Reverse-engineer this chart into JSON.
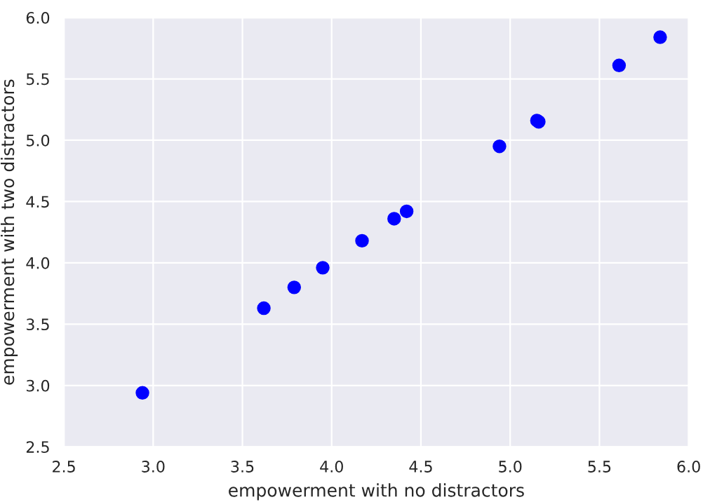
{
  "chart_data": {
    "type": "scatter",
    "xlabel": "empowerment with no distractors",
    "ylabel": "empowerment with two distractors",
    "x": [
      2.94,
      3.62,
      3.79,
      3.95,
      4.17,
      4.35,
      4.42,
      4.94,
      5.15,
      5.16,
      5.61,
      5.84
    ],
    "series": [
      {
        "color": "#0000ff",
        "values": [
          2.94,
          3.63,
          3.8,
          3.96,
          4.18,
          4.36,
          4.42,
          4.95,
          5.16,
          5.15,
          5.61,
          5.84
        ]
      }
    ],
    "xlim": [
      2.5,
      6.0
    ],
    "ylim": [
      2.5,
      6.0
    ],
    "xticks": [
      {
        "value": 2.5,
        "label": "2.5"
      },
      {
        "value": 3.0,
        "label": "3.0"
      },
      {
        "value": 3.5,
        "label": "3.5"
      },
      {
        "value": 4.0,
        "label": "4.0"
      },
      {
        "value": 4.5,
        "label": "4.5"
      },
      {
        "value": 5.0,
        "label": "5.0"
      },
      {
        "value": 5.5,
        "label": "5.5"
      },
      {
        "value": 6.0,
        "label": "6.0"
      }
    ],
    "yticks": [
      {
        "value": 2.5,
        "label": "2.5"
      },
      {
        "value": 3.0,
        "label": "3.0"
      },
      {
        "value": 3.5,
        "label": "3.5"
      },
      {
        "value": 4.0,
        "label": "4.0"
      },
      {
        "value": 4.5,
        "label": "4.5"
      },
      {
        "value": 5.0,
        "label": "5.0"
      },
      {
        "value": 5.5,
        "label": "5.5"
      },
      {
        "value": 6.0,
        "label": "6.0"
      }
    ],
    "grid": true,
    "marker": "circle"
  }
}
